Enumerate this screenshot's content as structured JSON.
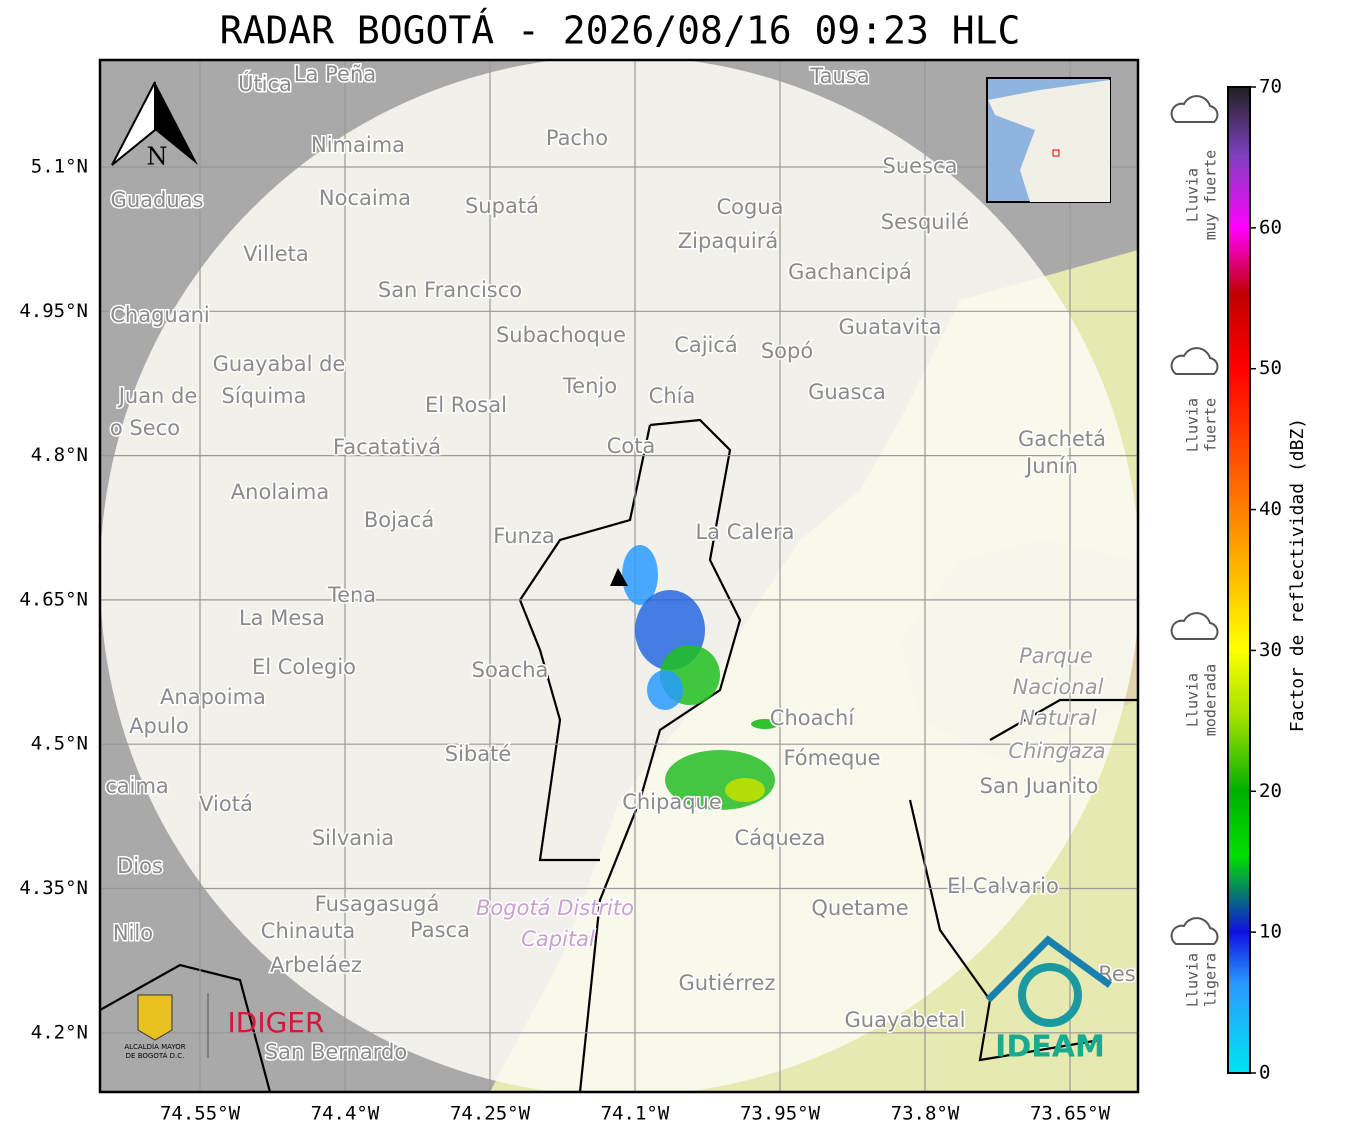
{
  "header": {
    "title": "RADAR BOGOTÁ - 2026/08/16 09:23 HLC"
  },
  "map": {
    "lat_ticks": [
      "5.1°N",
      "4.95°N",
      "4.8°N",
      "4.65°N",
      "4.5°N",
      "4.35°N",
      "4.2°N"
    ],
    "lon_ticks": [
      "74.55°W",
      "74.4°W",
      "74.25°W",
      "74.1°W",
      "73.95°W",
      "73.8°W",
      "73.65°W"
    ],
    "north_label": "N",
    "places": [
      "Útica",
      "La Peña",
      "Tausa",
      "Pacho",
      "Nimaima",
      "Suesca",
      "Guaduas",
      "Nocaima",
      "Supatá",
      "Cogua",
      "Sesquilé",
      "Zipaquirá",
      "Villeta",
      "Gachancipá",
      "San Francisco",
      "Chaguani",
      "Guatavita",
      "Subachoque",
      "Cajicá",
      "Sopó",
      "Guayabal de",
      "Síquima",
      "Juan de",
      "Tenjo",
      "Guasca",
      "Chía",
      "El Rosal",
      "o Seco",
      "Gachetá",
      "Junín",
      "Facatativá",
      "Cota",
      "Anolaima",
      "Bojacá",
      "Funza",
      "La Calera",
      "Tena",
      "La Mesa",
      "Parque",
      "Nacional",
      "Natural",
      "Chingaza",
      "Soacha",
      "El Colegio",
      "Anapoima",
      "Apulo",
      "Choachí",
      "Fómeque",
      "Sibaté",
      "San Juanito",
      "caima",
      "Viotá",
      "Chipaque",
      "Cáqueza",
      "Silvania",
      "Dios",
      "El Calvario",
      "Fusagasugá",
      "Bogotá Distrito",
      "Capital",
      "Quetame",
      "Nilo",
      "Chinauta",
      "Pasca",
      "Arbeláez",
      "Res",
      "Gutiérrez",
      "Guayabetal",
      "San Bernardo"
    ]
  },
  "logos": {
    "alcaldia_line1": "ALCALDÍA MAYOR",
    "alcaldia_line2": "DE BOGOTÁ D.C.",
    "idiger": "IDIGER",
    "ideam": "IDEAM"
  },
  "colorbar": {
    "label": "Factor de reflectividad (dBZ)",
    "lim": [
      0,
      70
    ],
    "ticks": [
      0,
      10,
      20,
      30,
      40,
      50,
      60,
      70
    ]
  },
  "rain_categories": [
    {
      "line1": "Lluvia",
      "line2": "muy fuerte"
    },
    {
      "line1": "Lluvia",
      "line2": "fuerte"
    },
    {
      "line1": "Lluvia",
      "line2": "moderada"
    },
    {
      "line1": "Lluvia",
      "line2": "ligera"
    }
  ]
}
